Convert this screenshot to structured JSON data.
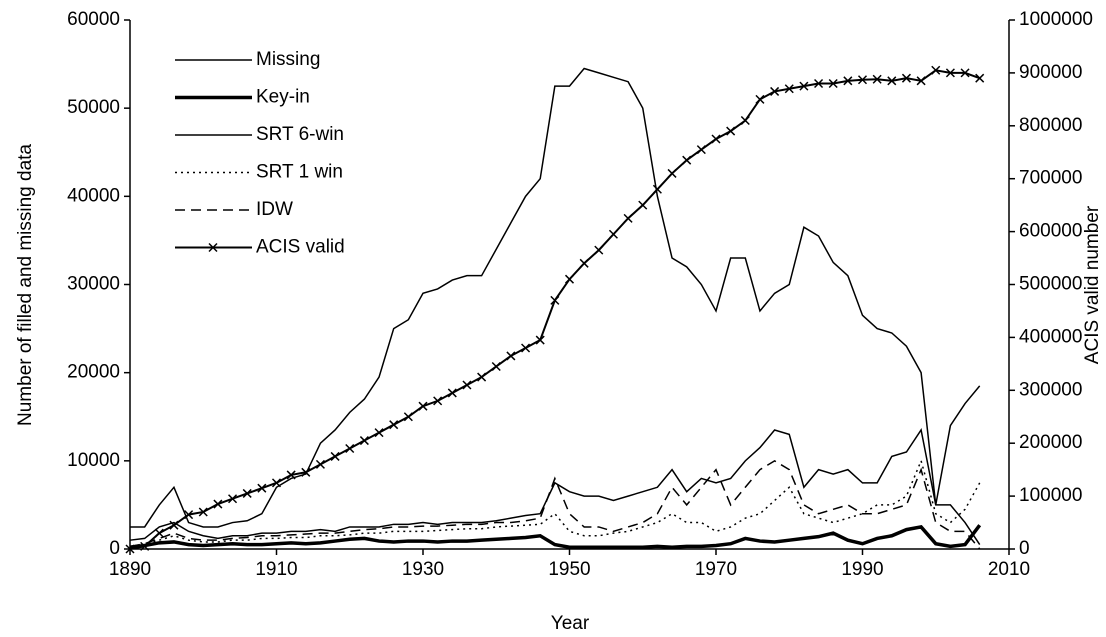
{
  "chart_data": {
    "type": "line",
    "x_label": "Year",
    "y_label": "Number of filled and missing data",
    "y2_label": "ACIS valid number",
    "x": [
      1890,
      1892,
      1894,
      1896,
      1898,
      1900,
      1902,
      1904,
      1906,
      1908,
      1910,
      1912,
      1914,
      1916,
      1918,
      1920,
      1922,
      1924,
      1926,
      1928,
      1930,
      1932,
      1934,
      1936,
      1938,
      1940,
      1942,
      1944,
      1946,
      1948,
      1950,
      1952,
      1954,
      1956,
      1958,
      1960,
      1962,
      1964,
      1966,
      1968,
      1970,
      1972,
      1974,
      1976,
      1978,
      1980,
      1982,
      1984,
      1986,
      1988,
      1990,
      1992,
      1994,
      1996,
      1998,
      2000,
      2002,
      2004,
      2006
    ],
    "xlim": [
      1890,
      2010
    ],
    "xticks": [
      1890,
      1910,
      1930,
      1950,
      1970,
      1990,
      2010
    ],
    "ylim": [
      0,
      60000
    ],
    "yticks": [
      0,
      10000,
      20000,
      30000,
      40000,
      50000,
      60000
    ],
    "y2lim": [
      0,
      1000000
    ],
    "y2ticks": [
      0,
      100000,
      200000,
      300000,
      400000,
      500000,
      600000,
      700000,
      800000,
      900000,
      1000000
    ],
    "grid": false,
    "legend": "upper left",
    "series": [
      {
        "name": "Missing",
        "color": "#000000",
        "dash": "solid",
        "width": 1.5,
        "values": [
          2500,
          2500,
          5000,
          7000,
          3000,
          2500,
          2500,
          3000,
          3200,
          4000,
          7000,
          8000,
          8500,
          12000,
          13500,
          15500,
          17000,
          19500,
          25000,
          26000,
          29000,
          29500,
          30500,
          31000,
          31000,
          34000,
          37000,
          40000,
          42000,
          52500,
          52500,
          54500,
          54000,
          53500,
          53000,
          50000,
          40000,
          33000,
          32000,
          30000,
          27000,
          33000,
          33000,
          27000,
          29000,
          30000,
          36500,
          35500,
          32500,
          31000,
          26500,
          25000,
          24500,
          23000,
          20000,
          5000,
          14000,
          16500,
          18500
        ]
      },
      {
        "name": "Key-in",
        "color": "#000000",
        "dash": "solid",
        "width": 3.5,
        "values": [
          200,
          400,
          700,
          800,
          500,
          400,
          500,
          600,
          500,
          500,
          600,
          700,
          600,
          700,
          900,
          1100,
          1200,
          900,
          800,
          900,
          900,
          800,
          900,
          900,
          1000,
          1100,
          1200,
          1300,
          1500,
          500,
          200,
          200,
          200,
          200,
          200,
          200,
          300,
          200,
          300,
          300,
          400,
          600,
          1200,
          900,
          800,
          1000,
          1200,
          1400,
          1800,
          1000,
          600,
          1200,
          1500,
          2200,
          2500,
          600,
          300,
          500,
          2700
        ]
      },
      {
        "name": "SRT 6-win",
        "color": "#000000",
        "dash": "solid",
        "width": 1.5,
        "values": [
          1000,
          1200,
          2500,
          3000,
          2000,
          1500,
          1200,
          1500,
          1500,
          1800,
          1800,
          2000,
          2000,
          2200,
          2000,
          2500,
          2500,
          2500,
          2800,
          2800,
          3000,
          2800,
          3000,
          3000,
          3000,
          3200,
          3500,
          3800,
          4000,
          7500,
          6500,
          6000,
          6000,
          5500,
          6000,
          6500,
          7000,
          9000,
          6500,
          8000,
          7500,
          8000,
          10000,
          11500,
          13500,
          13000,
          7000,
          9000,
          8500,
          9000,
          7500,
          7500,
          10500,
          11000,
          13500,
          5000,
          5000,
          3000,
          500
        ]
      },
      {
        "name": "SRT 1 win",
        "color": "#000000",
        "dash": "dotted",
        "width": 1.5,
        "values": [
          300,
          500,
          1000,
          1500,
          1000,
          800,
          800,
          1000,
          1000,
          1200,
          1200,
          1300,
          1300,
          1500,
          1500,
          1600,
          1800,
          1800,
          2000,
          2000,
          2000,
          2100,
          2200,
          2300,
          2300,
          2500,
          2600,
          2700,
          2800,
          4000,
          2000,
          1500,
          1500,
          1800,
          2000,
          2500,
          3000,
          4000,
          3000,
          3000,
          2000,
          2500,
          3500,
          4000,
          5500,
          7000,
          4000,
          3500,
          3000,
          3500,
          4000,
          5000,
          5000,
          6000,
          10000,
          4000,
          3000,
          4500,
          7500
        ]
      },
      {
        "name": "IDW",
        "color": "#000000",
        "dash": "dashed",
        "width": 1.5,
        "values": [
          300,
          600,
          1200,
          1800,
          1200,
          1000,
          1000,
          1200,
          1300,
          1500,
          1500,
          1600,
          1700,
          1800,
          1800,
          2000,
          2200,
          2300,
          2500,
          2500,
          2600,
          2600,
          2700,
          2800,
          2800,
          3000,
          3000,
          3200,
          3500,
          8000,
          4000,
          2500,
          2500,
          2000,
          2500,
          3000,
          4000,
          7000,
          5000,
          7000,
          9000,
          5000,
          7000,
          9000,
          10000,
          9000,
          5000,
          4000,
          4500,
          5000,
          4000,
          4000,
          4500,
          5000,
          9000,
          3000,
          2000,
          2000,
          0
        ]
      },
      {
        "name": "ACIS valid",
        "color": "#000000",
        "dash": "solid",
        "width": 2,
        "marker": "x",
        "axis": "y2",
        "values": [
          0,
          5000,
          30000,
          45000,
          65000,
          70000,
          85000,
          95000,
          105000,
          115000,
          125000,
          140000,
          145000,
          160000,
          175000,
          190000,
          205000,
          220000,
          235000,
          250000,
          270000,
          280000,
          295000,
          310000,
          325000,
          345000,
          365000,
          380000,
          395000,
          470000,
          510000,
          540000,
          565000,
          595000,
          625000,
          650000,
          680000,
          710000,
          735000,
          755000,
          775000,
          790000,
          810000,
          850000,
          865000,
          870000,
          875000,
          880000,
          880000,
          885000,
          887000,
          888000,
          885000,
          890000,
          885000,
          905000,
          900000,
          900000,
          890000
        ]
      }
    ]
  }
}
